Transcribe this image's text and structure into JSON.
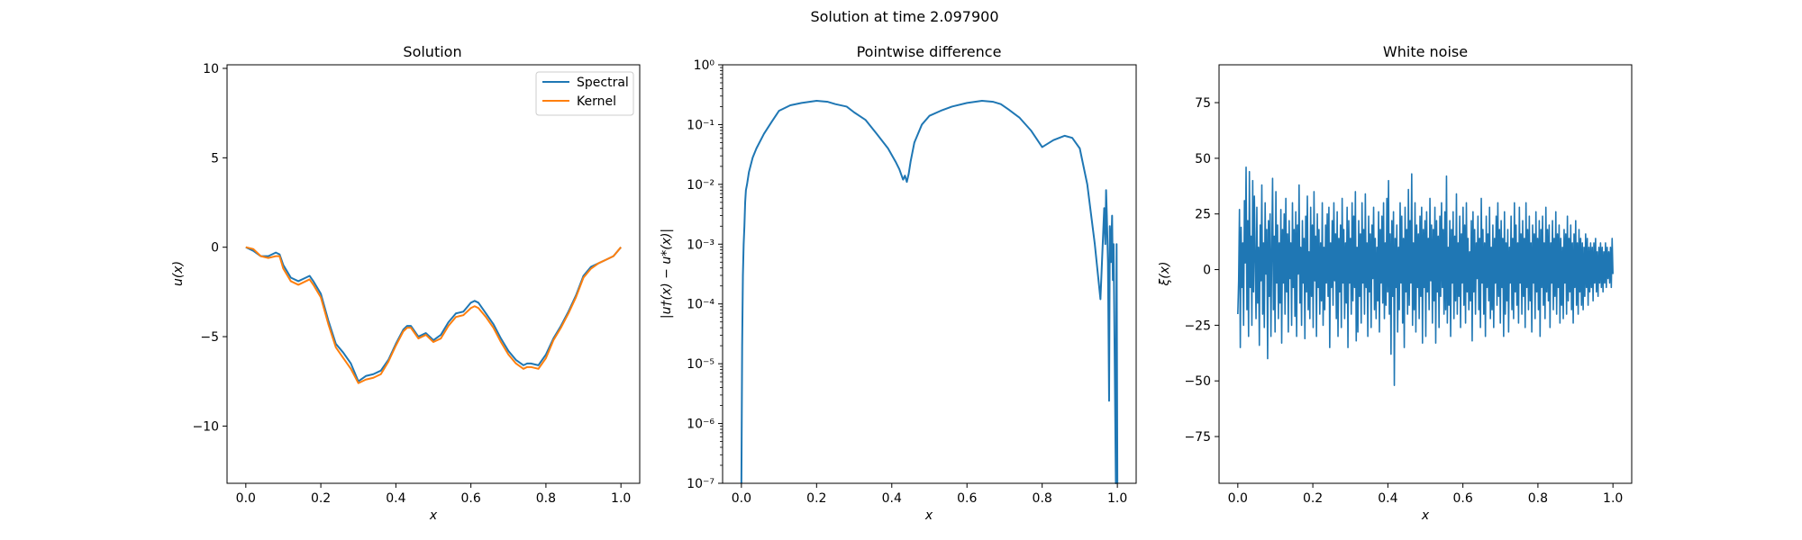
{
  "figure": {
    "suptitle": "Solution at time 2.097900"
  },
  "colors": {
    "spectral": "#1f77b4",
    "kernel": "#ff7f0e",
    "noise": "#1f77b4",
    "diff": "#1f77b4"
  },
  "chart_data": [
    {
      "type": "line",
      "title": "Solution",
      "xlabel": "x",
      "ylabel": "u(x)",
      "xlim": [
        -0.05,
        1.05
      ],
      "ylim": [
        -13.2,
        10.2
      ],
      "xticks": [
        0.0,
        0.2,
        0.4,
        0.6,
        0.8,
        1.0
      ],
      "xticklabels": [
        "0.0",
        "0.2",
        "0.4",
        "0.6",
        "0.8",
        "1.0"
      ],
      "yticks": [
        -10,
        -5,
        0,
        5,
        10
      ],
      "yticklabels": [
        "−10",
        "−5",
        "0",
        "5",
        "10"
      ],
      "legend": {
        "placement": "top-right",
        "entries": [
          "Spectral",
          "Kernel"
        ]
      },
      "series": [
        {
          "name": "Spectral",
          "x": [
            0.0,
            0.02,
            0.04,
            0.06,
            0.08,
            0.09,
            0.1,
            0.12,
            0.14,
            0.16,
            0.17,
            0.18,
            0.2,
            0.22,
            0.24,
            0.26,
            0.28,
            0.3,
            0.32,
            0.34,
            0.36,
            0.38,
            0.4,
            0.42,
            0.43,
            0.44,
            0.46,
            0.48,
            0.5,
            0.52,
            0.54,
            0.56,
            0.58,
            0.6,
            0.61,
            0.62,
            0.64,
            0.66,
            0.68,
            0.7,
            0.72,
            0.74,
            0.75,
            0.76,
            0.78,
            0.8,
            0.82,
            0.84,
            0.86,
            0.88,
            0.9,
            0.92,
            0.94,
            0.96,
            0.98,
            1.0
          ],
          "y": [
            0.0,
            -0.2,
            -0.5,
            -0.5,
            -0.3,
            -0.4,
            -1.0,
            -1.7,
            -1.9,
            -1.7,
            -1.6,
            -1.9,
            -2.6,
            -4.1,
            -5.4,
            -5.9,
            -6.5,
            -7.5,
            -7.2,
            -7.1,
            -6.9,
            -6.3,
            -5.4,
            -4.6,
            -4.4,
            -4.4,
            -5.0,
            -4.8,
            -5.2,
            -4.9,
            -4.2,
            -3.7,
            -3.6,
            -3.1,
            -3.0,
            -3.1,
            -3.7,
            -4.3,
            -5.1,
            -5.8,
            -6.3,
            -6.6,
            -6.5,
            -6.5,
            -6.6,
            -6.0,
            -5.1,
            -4.4,
            -3.6,
            -2.7,
            -1.6,
            -1.1,
            -0.9,
            -0.7,
            -0.5,
            0.0
          ]
        },
        {
          "name": "Kernel",
          "x": [
            0.0,
            0.02,
            0.04,
            0.06,
            0.08,
            0.09,
            0.1,
            0.12,
            0.14,
            0.16,
            0.17,
            0.18,
            0.2,
            0.22,
            0.24,
            0.26,
            0.28,
            0.3,
            0.32,
            0.34,
            0.36,
            0.38,
            0.4,
            0.42,
            0.43,
            0.44,
            0.46,
            0.48,
            0.5,
            0.52,
            0.54,
            0.56,
            0.58,
            0.6,
            0.61,
            0.62,
            0.64,
            0.66,
            0.68,
            0.7,
            0.72,
            0.74,
            0.75,
            0.76,
            0.78,
            0.8,
            0.82,
            0.84,
            0.86,
            0.88,
            0.9,
            0.92,
            0.94,
            0.96,
            0.98,
            1.0
          ],
          "y": [
            0.0,
            -0.1,
            -0.5,
            -0.6,
            -0.5,
            -0.5,
            -1.2,
            -1.9,
            -2.1,
            -1.9,
            -1.8,
            -2.1,
            -2.8,
            -4.3,
            -5.6,
            -6.2,
            -6.8,
            -7.6,
            -7.4,
            -7.3,
            -7.1,
            -6.4,
            -5.5,
            -4.7,
            -4.5,
            -4.5,
            -5.1,
            -4.9,
            -5.3,
            -5.1,
            -4.4,
            -3.9,
            -3.8,
            -3.4,
            -3.3,
            -3.4,
            -3.9,
            -4.5,
            -5.3,
            -6.0,
            -6.5,
            -6.8,
            -6.7,
            -6.7,
            -6.8,
            -6.2,
            -5.2,
            -4.5,
            -3.7,
            -2.8,
            -1.7,
            -1.2,
            -0.9,
            -0.7,
            -0.5,
            0.0
          ]
        }
      ]
    },
    {
      "type": "line",
      "title": "Pointwise difference",
      "xlabel": "x",
      "ylabel": "|u†(x) − u*(x)|",
      "yscale": "log",
      "xlim": [
        -0.05,
        1.05
      ],
      "ylim": [
        1e-07,
        1
      ],
      "xticks": [
        0.0,
        0.2,
        0.4,
        0.6,
        0.8,
        1.0
      ],
      "xticklabels": [
        "0.0",
        "0.2",
        "0.4",
        "0.6",
        "0.8",
        "1.0"
      ],
      "yticks": [
        1e-07,
        1e-06,
        1e-05,
        0.0001,
        0.001,
        0.01,
        0.1,
        1
      ],
      "yticklabels": [
        "10⁻⁷",
        "10⁻⁶",
        "10⁻⁵",
        "10⁻⁴",
        "10⁻³",
        "10⁻²",
        "10⁻¹",
        "10⁰"
      ],
      "series": [
        {
          "x": [
            0.0,
            0.002,
            0.004,
            0.006,
            0.008,
            0.01,
            0.012,
            0.015,
            0.02,
            0.03,
            0.04,
            0.06,
            0.08,
            0.1,
            0.13,
            0.16,
            0.2,
            0.23,
            0.25,
            0.28,
            0.3,
            0.33,
            0.36,
            0.39,
            0.41,
            0.42,
            0.43,
            0.435,
            0.44,
            0.445,
            0.45,
            0.46,
            0.48,
            0.5,
            0.53,
            0.56,
            0.6,
            0.64,
            0.67,
            0.69,
            0.71,
            0.74,
            0.77,
            0.8,
            0.83,
            0.86,
            0.88,
            0.9,
            0.92,
            0.94,
            0.955,
            0.965,
            0.968,
            0.97,
            0.972,
            0.975,
            0.978,
            0.98,
            0.983,
            0.986,
            0.988,
            0.99,
            0.993,
            0.996,
            0.998,
            1.0
          ],
          "y": [
            1e-07,
            2e-05,
            0.0003,
            0.001,
            0.002,
            0.005,
            0.008,
            0.01,
            0.016,
            0.028,
            0.04,
            0.07,
            0.11,
            0.17,
            0.21,
            0.23,
            0.25,
            0.24,
            0.22,
            0.2,
            0.16,
            0.12,
            0.07,
            0.04,
            0.024,
            0.018,
            0.012,
            0.014,
            0.011,
            0.015,
            0.024,
            0.05,
            0.1,
            0.14,
            0.17,
            0.2,
            0.23,
            0.25,
            0.24,
            0.22,
            0.18,
            0.13,
            0.08,
            0.042,
            0.055,
            0.065,
            0.06,
            0.04,
            0.01,
            0.001,
            0.00012,
            0.004,
            0.001,
            0.008,
            0.003,
            0.0005,
            2.4e-06,
            0.002,
            0.0005,
            0.003,
            0.00025,
            0.001,
            1e-05,
            1e-07,
            0.001,
            1e-07
          ]
        }
      ]
    },
    {
      "type": "line",
      "title": "White noise",
      "xlabel": "x",
      "ylabel": "ξ(x)",
      "xlim": [
        -0.05,
        1.05
      ],
      "ylim": [
        -96,
        92
      ],
      "xticks": [
        0.0,
        0.2,
        0.4,
        0.6,
        0.8,
        1.0
      ],
      "xticklabels": [
        "0.0",
        "0.2",
        "0.4",
        "0.6",
        "0.8",
        "1.0"
      ],
      "yticks": [
        -75,
        -50,
        -25,
        0,
        25,
        50,
        75
      ],
      "yticklabels": [
        "−75",
        "−50",
        "−25",
        "0",
        "25",
        "50",
        "75"
      ],
      "series": [
        {
          "x_start": 0.0,
          "x_end": 1.0,
          "y": [
            -20,
            -5,
            27,
            -35,
            19,
            -8,
            12,
            -25,
            31,
            3,
            46,
            -18,
            22,
            -30,
            44,
            -8,
            15,
            -25,
            40,
            -10,
            33,
            5,
            -22,
            28,
            -15,
            10,
            -34,
            20,
            -5,
            38,
            -20,
            12,
            -26,
            30,
            -2,
            18,
            -40,
            22,
            -12,
            25,
            -30,
            8,
            41,
            -18,
            15,
            -28,
            35,
            -6,
            20,
            -22,
            12,
            -15,
            27,
            -33,
            18,
            -6,
            25,
            -20,
            32,
            -10,
            16,
            -28,
            22,
            -4,
            12,
            -25,
            30,
            -8,
            18,
            -21,
            26,
            -30,
            20,
            -2,
            38,
            -15,
            10,
            -25,
            22,
            -6,
            14,
            -31,
            24,
            -10,
            33,
            -18,
            8,
            -22,
            28,
            -12,
            20,
            -26,
            35,
            -5,
            15,
            -30,
            25,
            -8,
            18,
            -20,
            12,
            -14,
            30,
            -25,
            10,
            -18,
            20,
            -6,
            25,
            -12,
            28,
            -35,
            12,
            -8,
            22,
            -16,
            30,
            -5,
            16,
            -22,
            26,
            -30,
            14,
            -10,
            20,
            -26,
            32,
            -6,
            18,
            -22,
            12,
            -15,
            28,
            -35,
            22,
            -6,
            14,
            -20,
            30,
            -14,
            24,
            -8,
            35,
            -32,
            10,
            -28,
            22,
            -12,
            16,
            -24,
            30,
            -6,
            18,
            -20,
            34,
            -8,
            12,
            -30,
            24,
            -10,
            16,
            -26,
            20,
            -4,
            28,
            -18,
            14,
            -22,
            10,
            -14,
            26,
            -28,
            18,
            -6,
            24,
            -15,
            30,
            -22,
            12,
            -16,
            32,
            -10,
            40,
            -20,
            16,
            -38,
            22,
            -12,
            26,
            -52,
            14,
            -8,
            20,
            -28,
            10,
            -18,
            30,
            -6,
            24,
            -24,
            14,
            -35,
            28,
            -10,
            18,
            -20,
            36,
            -16,
            22,
            -6,
            43,
            -25,
            12,
            -18,
            30,
            -28,
            20,
            -8,
            16,
            -22,
            24,
            -12,
            28,
            -33,
            18,
            -8,
            22,
            -30,
            26,
            -10,
            14,
            -18,
            32,
            -5,
            20,
            -24,
            18,
            -14,
            28,
            -33,
            22,
            -10,
            15,
            -26,
            24,
            -12,
            30,
            -8,
            18,
            -20,
            26,
            -18,
            42,
            -24,
            10,
            -16,
            22,
            -30,
            18,
            -6,
            26,
            -22,
            15,
            -14,
            34,
            -20,
            12,
            -12,
            24,
            -26,
            16,
            -6,
            28,
            -16,
            20,
            -24,
            30,
            -10,
            14,
            -18,
            8,
            -14,
            22,
            -32,
            26,
            -10,
            18,
            -20,
            12,
            -4,
            24,
            -18,
            14,
            -26,
            32,
            -6,
            18,
            -20,
            12,
            -30,
            24,
            -8,
            16,
            -14,
            28,
            -22,
            10,
            -18,
            20,
            -26,
            14,
            -6,
            24,
            -16,
            30,
            -12,
            18,
            -24,
            22,
            -8,
            14,
            -30,
            26,
            -20,
            12,
            -14,
            18,
            -28,
            10,
            -6,
            24,
            -18,
            14,
            -22,
            30,
            -10,
            20,
            -16,
            12,
            -24,
            28,
            -6,
            16,
            -20,
            22,
            -12,
            14,
            -26,
            30,
            -8,
            18,
            -18,
            24,
            -14,
            12,
            -28,
            20,
            -6,
            16,
            -22,
            26,
            -10,
            14,
            -18,
            22,
            -30,
            18,
            -8,
            24,
            -16,
            12,
            -22,
            28,
            -10,
            18,
            -14,
            20,
            -26,
            12,
            -6,
            22,
            -18,
            14,
            -12,
            26,
            -20,
            16,
            -8,
            20,
            -24,
            14,
            -16,
            10,
            -22,
            18,
            -6,
            16,
            -20,
            24,
            -14,
            14,
            -10,
            20,
            -18,
            12,
            -24,
            16,
            -8,
            22,
            -16,
            12,
            -20,
            18,
            -10,
            14,
            -16,
            12,
            -18,
            10,
            -12,
            16,
            -8,
            14,
            -16,
            10,
            -10,
            12,
            -8,
            10,
            -14,
            12,
            -6,
            14,
            -10,
            8,
            -12,
            10,
            -6,
            12,
            -8,
            10,
            -10,
            8,
            -6,
            12,
            -8,
            10,
            -4,
            8,
            -6,
            10,
            -8,
            14,
            -2
          ]
        }
      ]
    }
  ]
}
